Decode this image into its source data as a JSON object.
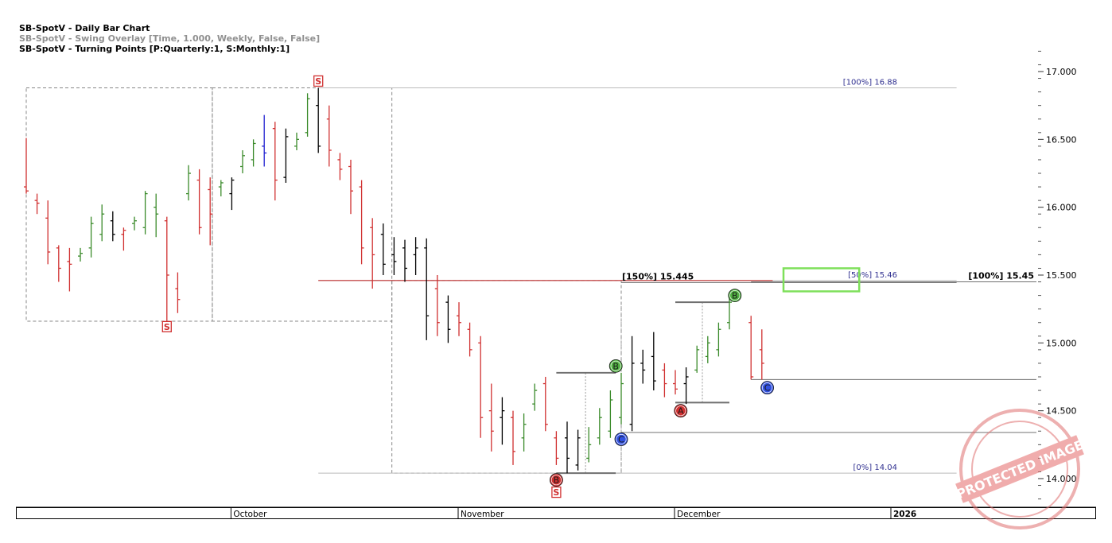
{
  "header": {
    "line1": "SB-SpotV - Daily Bar Chart",
    "line2": "SB-SpotV - Swing Overlay [Time, 1.000, Weekly, False, False]",
    "line3": "SB-SpotV - Turning Points [P:Quarterly:1, S:Monthly:1]"
  },
  "chart_data": {
    "type": "ohlc-bar",
    "instrument": "SB-SpotV",
    "y_range": [
      13.8,
      17.25
    ],
    "y_ticks": [
      "14.000",
      "14.500",
      "15.000",
      "15.500",
      "16.000",
      "16.500",
      "17.000"
    ],
    "x_months": [
      {
        "label": "October",
        "index": 19
      },
      {
        "label": "November",
        "index": 40
      },
      {
        "label": "December",
        "index": 60
      },
      {
        "label": "2026",
        "index": 80
      }
    ],
    "bars": [
      {
        "i": 0,
        "h": 16.51,
        "l": 16.1,
        "o": 16.15,
        "c": 16.12,
        "color": "#d03030"
      },
      {
        "i": 1,
        "h": 16.1,
        "l": 15.95,
        "o": 16.05,
        "c": 16.03,
        "color": "#d03030"
      },
      {
        "i": 2,
        "h": 16.05,
        "l": 15.58,
        "o": 15.92,
        "c": 15.67,
        "color": "#d03030"
      },
      {
        "i": 3,
        "h": 15.72,
        "l": 15.45,
        "o": 15.7,
        "c": 15.55,
        "color": "#d03030"
      },
      {
        "i": 4,
        "h": 15.7,
        "l": 15.38,
        "o": 15.6,
        "c": 15.58,
        "color": "#d03030"
      },
      {
        "i": 5,
        "h": 15.7,
        "l": 15.6,
        "o": 15.64,
        "c": 15.66,
        "color": "#3a8a2a"
      },
      {
        "i": 6,
        "h": 15.93,
        "l": 15.63,
        "o": 15.7,
        "c": 15.88,
        "color": "#3a8a2a"
      },
      {
        "i": 7,
        "h": 16.02,
        "l": 15.75,
        "o": 15.8,
        "c": 15.95,
        "color": "#3a8a2a"
      },
      {
        "i": 8,
        "h": 15.97,
        "l": 15.75,
        "o": 15.9,
        "c": 15.8,
        "color": "#000000"
      },
      {
        "i": 9,
        "h": 15.85,
        "l": 15.68,
        "o": 15.8,
        "c": 15.83,
        "color": "#d03030"
      },
      {
        "i": 10,
        "h": 15.93,
        "l": 15.83,
        "o": 15.88,
        "c": 15.9,
        "color": "#3a8a2a"
      },
      {
        "i": 11,
        "h": 16.12,
        "l": 15.8,
        "o": 15.85,
        "c": 16.1,
        "color": "#3a8a2a"
      },
      {
        "i": 12,
        "h": 16.1,
        "l": 15.78,
        "o": 16.0,
        "c": 15.95,
        "color": "#3a8a2a"
      },
      {
        "i": 13,
        "h": 15.93,
        "l": 15.15,
        "o": 15.9,
        "c": 15.5,
        "color": "#d03030"
      },
      {
        "i": 14,
        "h": 15.52,
        "l": 15.22,
        "o": 15.4,
        "c": 15.32,
        "color": "#d03030"
      },
      {
        "i": 15,
        "h": 16.31,
        "l": 16.05,
        "o": 16.1,
        "c": 16.25,
        "color": "#3a8a2a"
      },
      {
        "i": 16,
        "h": 16.28,
        "l": 15.8,
        "o": 16.2,
        "c": 15.85,
        "color": "#d03030"
      },
      {
        "i": 17,
        "h": 16.22,
        "l": 15.72,
        "o": 16.13,
        "c": 15.95,
        "color": "#d03030"
      },
      {
        "i": 18,
        "h": 16.2,
        "l": 16.08,
        "o": 16.15,
        "c": 16.18,
        "color": "#3a8a2a"
      },
      {
        "i": 19,
        "h": 16.22,
        "l": 15.98,
        "o": 16.1,
        "c": 16.2,
        "color": "#000000"
      },
      {
        "i": 20,
        "h": 16.42,
        "l": 16.25,
        "o": 16.3,
        "c": 16.38,
        "color": "#3a8a2a"
      },
      {
        "i": 21,
        "h": 16.5,
        "l": 16.3,
        "o": 16.35,
        "c": 16.47,
        "color": "#3a8a2a"
      },
      {
        "i": 22,
        "h": 16.68,
        "l": 16.3,
        "o": 16.45,
        "c": 16.4,
        "color": "#2020d0"
      },
      {
        "i": 23,
        "h": 16.63,
        "l": 16.05,
        "o": 16.58,
        "c": 16.2,
        "color": "#d03030"
      },
      {
        "i": 24,
        "h": 16.58,
        "l": 16.18,
        "o": 16.22,
        "c": 16.52,
        "color": "#000000"
      },
      {
        "i": 25,
        "h": 16.55,
        "l": 16.42,
        "o": 16.45,
        "c": 16.5,
        "color": "#3a8a2a"
      },
      {
        "i": 26,
        "h": 16.84,
        "l": 16.52,
        "o": 16.55,
        "c": 16.8,
        "color": "#3a8a2a"
      },
      {
        "i": 27,
        "h": 16.88,
        "l": 16.4,
        "o": 16.75,
        "c": 16.45,
        "color": "#000000"
      },
      {
        "i": 28,
        "h": 16.75,
        "l": 16.3,
        "o": 16.65,
        "c": 16.42,
        "color": "#d03030"
      },
      {
        "i": 29,
        "h": 16.4,
        "l": 16.2,
        "o": 16.35,
        "c": 16.28,
        "color": "#d03030"
      },
      {
        "i": 30,
        "h": 16.35,
        "l": 15.95,
        "o": 16.3,
        "c": 16.12,
        "color": "#d03030"
      },
      {
        "i": 31,
        "h": 16.2,
        "l": 15.58,
        "o": 16.15,
        "c": 15.7,
        "color": "#d03030"
      },
      {
        "i": 32,
        "h": 15.92,
        "l": 15.4,
        "o": 15.85,
        "c": 15.65,
        "color": "#d03030"
      },
      {
        "i": 33,
        "h": 15.88,
        "l": 15.5,
        "o": 15.8,
        "c": 15.58,
        "color": "#000000"
      },
      {
        "i": 34,
        "h": 15.78,
        "l": 15.5,
        "o": 15.65,
        "c": 15.6,
        "color": "#000000"
      },
      {
        "i": 35,
        "h": 15.76,
        "l": 15.45,
        "o": 15.7,
        "c": 15.55,
        "color": "#000000"
      },
      {
        "i": 36,
        "h": 15.78,
        "l": 15.5,
        "o": 15.65,
        "c": 15.7,
        "color": "#000000"
      },
      {
        "i": 37,
        "h": 15.77,
        "l": 15.02,
        "o": 15.7,
        "c": 15.2,
        "color": "#000000"
      },
      {
        "i": 38,
        "h": 15.5,
        "l": 15.05,
        "o": 15.4,
        "c": 15.15,
        "color": "#d03030"
      },
      {
        "i": 39,
        "h": 15.35,
        "l": 15.0,
        "o": 15.3,
        "c": 15.1,
        "color": "#000000"
      },
      {
        "i": 40,
        "h": 15.3,
        "l": 15.05,
        "o": 15.2,
        "c": 15.15,
        "color": "#d03030"
      },
      {
        "i": 41,
        "h": 15.15,
        "l": 14.9,
        "o": 15.1,
        "c": 14.95,
        "color": "#d03030"
      },
      {
        "i": 42,
        "h": 15.05,
        "l": 14.3,
        "o": 15.0,
        "c": 14.45,
        "color": "#d03030"
      },
      {
        "i": 43,
        "h": 14.7,
        "l": 14.2,
        "o": 14.5,
        "c": 14.35,
        "color": "#d03030"
      },
      {
        "i": 44,
        "h": 14.6,
        "l": 14.25,
        "o": 14.45,
        "c": 14.5,
        "color": "#000000"
      },
      {
        "i": 45,
        "h": 14.5,
        "l": 14.1,
        "o": 14.45,
        "c": 14.2,
        "color": "#d03030"
      },
      {
        "i": 46,
        "h": 14.48,
        "l": 14.2,
        "o": 14.3,
        "c": 14.4,
        "color": "#3a8a2a"
      },
      {
        "i": 47,
        "h": 14.7,
        "l": 14.5,
        "o": 14.55,
        "c": 14.65,
        "color": "#3a8a2a"
      },
      {
        "i": 48,
        "h": 14.75,
        "l": 14.35,
        "o": 14.7,
        "c": 14.4,
        "color": "#d03030"
      },
      {
        "i": 49,
        "h": 14.35,
        "l": 14.1,
        "o": 14.3,
        "c": 14.15,
        "color": "#d03030"
      },
      {
        "i": 50,
        "h": 14.42,
        "l": 14.04,
        "o": 14.3,
        "c": 14.15,
        "color": "#000000"
      },
      {
        "i": 51,
        "h": 14.36,
        "l": 14.06,
        "o": 14.1,
        "c": 14.3,
        "color": "#000000"
      },
      {
        "i": 52,
        "h": 14.38,
        "l": 14.12,
        "o": 14.15,
        "c": 14.25,
        "color": "#3a8a2a"
      },
      {
        "i": 53,
        "h": 14.52,
        "l": 14.25,
        "o": 14.3,
        "c": 14.45,
        "color": "#3a8a2a"
      },
      {
        "i": 54,
        "h": 14.65,
        "l": 14.3,
        "o": 14.35,
        "c": 14.58,
        "color": "#3a8a2a"
      },
      {
        "i": 55,
        "h": 14.78,
        "l": 14.4,
        "o": 14.45,
        "c": 14.7,
        "color": "#3a8a2a"
      },
      {
        "i": 56,
        "h": 15.05,
        "l": 14.35,
        "o": 14.4,
        "c": 14.85,
        "color": "#000000"
      },
      {
        "i": 57,
        "h": 14.95,
        "l": 14.7,
        "o": 14.85,
        "c": 14.8,
        "color": "#000000"
      },
      {
        "i": 58,
        "h": 15.08,
        "l": 14.65,
        "o": 14.9,
        "c": 14.72,
        "color": "#000000"
      },
      {
        "i": 59,
        "h": 14.85,
        "l": 14.6,
        "o": 14.8,
        "c": 14.7,
        "color": "#d03030"
      },
      {
        "i": 60,
        "h": 14.8,
        "l": 14.62,
        "o": 14.7,
        "c": 14.66,
        "color": "#d03030"
      },
      {
        "i": 61,
        "h": 14.82,
        "l": 14.55,
        "o": 14.7,
        "c": 14.75,
        "color": "#000000"
      },
      {
        "i": 62,
        "h": 14.98,
        "l": 14.78,
        "o": 14.8,
        "c": 14.95,
        "color": "#3a8a2a"
      },
      {
        "i": 63,
        "h": 15.05,
        "l": 14.85,
        "o": 14.9,
        "c": 15.0,
        "color": "#3a8a2a"
      },
      {
        "i": 64,
        "h": 15.15,
        "l": 14.9,
        "o": 14.95,
        "c": 15.1,
        "color": "#3a8a2a"
      },
      {
        "i": 65,
        "h": 15.35,
        "l": 15.1,
        "o": 15.15,
        "c": 15.3,
        "color": "#3a8a2a"
      },
      {
        "i": 67,
        "h": 15.2,
        "l": 14.73,
        "o": 15.15,
        "c": 14.75,
        "color": "#d03030"
      },
      {
        "i": 68,
        "h": 15.1,
        "l": 14.73,
        "o": 14.95,
        "c": 14.85,
        "color": "#d03030"
      }
    ],
    "levels": [
      {
        "name": "[100%] 16.88",
        "value": 16.88,
        "from": 27,
        "to": 86,
        "color": "#bbbbbb",
        "label": "[100%] 16.88",
        "label_color": "#303090"
      },
      {
        "name": "[50%] 15.46",
        "value": 15.46,
        "from": 27,
        "to": 86,
        "color": "#bbbbbb",
        "label": "[50%] 15.46",
        "label_color": "#303090"
      },
      {
        "name": "[0%] 14.04",
        "value": 14.04,
        "from": 27,
        "to": 86,
        "color": "#bbbbbb",
        "label": "[0%] 14.04",
        "label_color": "#303090"
      },
      {
        "name": "red-resistance",
        "value": 15.46,
        "from": 27,
        "to": 69,
        "color": "#c03030",
        "label": "",
        "label_color": ""
      },
      {
        "name": "[150%] 15.445",
        "value": 15.445,
        "from": 55,
        "to": 86,
        "color": "#707070",
        "label": "[150%] 15.445",
        "label_color": "#000000"
      },
      {
        "name": "[100%] 15.45",
        "value": 15.45,
        "from": 67,
        "to": 100,
        "color": "#707070",
        "label": "[100%] 15.45",
        "label_color": "#000000"
      },
      {
        "name": "c-support-1",
        "value": 14.73,
        "from": 67,
        "to": 100,
        "color": "#707070",
        "label": "",
        "label_color": ""
      },
      {
        "name": "c-support-2",
        "value": 14.34,
        "from": 55,
        "to": 100,
        "color": "#707070",
        "label": "",
        "label_color": ""
      }
    ],
    "segments": [
      {
        "v": 14.04,
        "from": 49,
        "to": 54.5,
        "color": "#707070",
        "width": 2
      },
      {
        "v": 14.78,
        "from": 49,
        "to": 54.5,
        "color": "#707070",
        "width": 2
      },
      {
        "v": 14.56,
        "from": 60,
        "to": 65,
        "color": "#707070",
        "width": 2
      },
      {
        "v": 15.3,
        "from": 60,
        "to": 65,
        "color": "#707070",
        "width": 2
      }
    ],
    "verticals": [
      {
        "i": 51.7,
        "from": 14.04,
        "to": 14.78
      },
      {
        "i": 55,
        "from": 14.04,
        "to": 15.28
      },
      {
        "i": 62.5,
        "from": 14.56,
        "to": 15.3
      }
    ],
    "boxes": [
      {
        "from": 0,
        "to": 17.2,
        "top": 16.88,
        "bottom": 15.16
      },
      {
        "from": 17.2,
        "to": 33.8,
        "top": 16.88,
        "bottom": 15.16
      },
      {
        "from": 33.8,
        "to": 55,
        "top": 15.46,
        "bottom": 14.04
      }
    ],
    "target_zone": {
      "from": 70,
      "to": 77,
      "top": 15.55,
      "bottom": 15.38,
      "color": "#7ee05a"
    },
    "markers": [
      {
        "type": "S",
        "i": 27,
        "value": 16.93,
        "shape": "square",
        "color": "#d03030"
      },
      {
        "type": "S",
        "i": 13,
        "value": 15.12,
        "shape": "square",
        "color": "#d03030"
      },
      {
        "type": "S",
        "i": 49,
        "value": 13.9,
        "shape": "square",
        "color": "#d03030"
      },
      {
        "type": "B",
        "i": 49,
        "value": 13.99,
        "shape": "circle",
        "color": "#d03030"
      },
      {
        "type": "B",
        "i": 54.5,
        "value": 14.83,
        "shape": "circle",
        "color": "#50b040"
      },
      {
        "type": "C",
        "i": 55,
        "value": 14.29,
        "shape": "circle",
        "color": "#3050e0"
      },
      {
        "type": "A",
        "i": 60.5,
        "value": 14.5,
        "shape": "circle",
        "color": "#d03030"
      },
      {
        "type": "B",
        "i": 65.5,
        "value": 15.35,
        "shape": "circle",
        "color": "#50b040"
      },
      {
        "type": "C",
        "i": 68.5,
        "value": 14.67,
        "shape": "circle",
        "color": "#3050e0"
      }
    ],
    "watermark": "PROTECTED IMAGE"
  }
}
